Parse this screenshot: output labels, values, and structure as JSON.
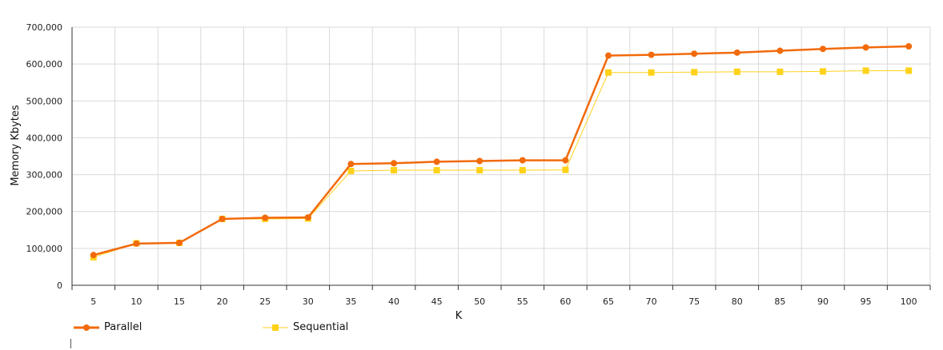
{
  "chart_data": {
    "type": "line",
    "xlabel": "K",
    "ylabel": "Memory Kbytes",
    "x": [
      5,
      10,
      15,
      20,
      25,
      30,
      35,
      40,
      45,
      50,
      55,
      60,
      65,
      70,
      75,
      80,
      85,
      90,
      95,
      100
    ],
    "ylim": [
      0,
      700000
    ],
    "y_ticks": [
      0,
      100000,
      200000,
      300000,
      400000,
      500000,
      600000,
      700000
    ],
    "y_tick_labels": [
      "0",
      "100,000",
      "200,000",
      "300,000",
      "400,000",
      "500,000",
      "600,000",
      "700,000"
    ],
    "grid": true,
    "legend_position": "bottom-left",
    "series": [
      {
        "name": "Parallel",
        "color": "#F26A0C",
        "marker": "circle",
        "values": [
          82000,
          113000,
          115000,
          180000,
          183000,
          184000,
          329000,
          331000,
          335000,
          337000,
          339000,
          339000,
          623000,
          625000,
          628000,
          631000,
          636000,
          641000,
          645000,
          648000
        ]
      },
      {
        "name": "Sequential",
        "color": "#FFD21A",
        "marker": "square",
        "values": [
          76000,
          114000,
          115000,
          180000,
          180000,
          181000,
          310000,
          312000,
          312000,
          312000,
          312000,
          313000,
          577000,
          577000,
          578000,
          579000,
          579000,
          580000,
          582000,
          582000
        ]
      }
    ]
  }
}
